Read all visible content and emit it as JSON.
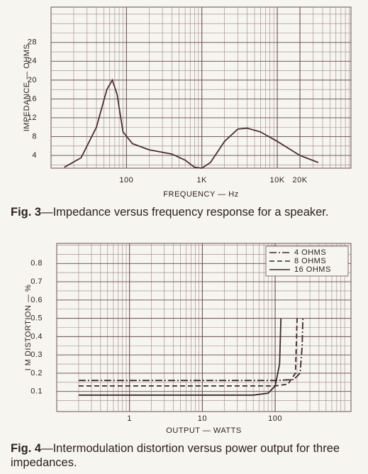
{
  "chart_data": [
    {
      "type": "line",
      "xlabel": "FREQUENCY — Hz",
      "ylabel": "IMPEDANCE — OHMS",
      "log_x": true,
      "grid": true,
      "color": "#4a3030",
      "x": [
        15,
        25,
        40,
        55,
        65,
        75,
        90,
        120,
        200,
        400,
        600,
        800,
        1000,
        1300,
        2000,
        3000,
        4000,
        6000,
        10000,
        20000,
        35000
      ],
      "values": [
        1.5,
        3.5,
        10,
        18,
        20,
        17,
        9,
        6.5,
        5.2,
        4.3,
        3,
        1.5,
        1.3,
        2.5,
        7,
        9.6,
        9.8,
        9,
        7,
        4,
        2.5
      ],
      "xlim": [
        10,
        95000
      ],
      "ylim": [
        1.3,
        35.5
      ],
      "xticks": [
        100,
        {
          "value": 1000,
          "label": "1K"
        },
        {
          "value": 10000,
          "label": "10K"
        },
        {
          "value": 20000,
          "label": "20K"
        }
      ],
      "yticks": [
        4,
        8,
        12,
        16,
        20,
        24,
        28
      ]
    },
    {
      "type": "line",
      "xlabel": "OUTPUT — WATTS",
      "ylabel": "I M DISTORTION — %",
      "log_x": true,
      "grid": true,
      "legend": "top-right",
      "series": [
        {
          "name": "4 OHMS",
          "color": "#3a2a2a",
          "dash": "dashdot",
          "x": [
            0.2,
            100,
            180,
            220,
            235,
            240
          ],
          "values": [
            0.16,
            0.16,
            0.165,
            0.2,
            0.35,
            0.5
          ]
        },
        {
          "name": "8 OHMS",
          "color": "#3a2a2a",
          "dash": "dashed",
          "x": [
            0.2,
            100,
            150,
            190,
            200
          ],
          "values": [
            0.13,
            0.13,
            0.14,
            0.2,
            0.5
          ]
        },
        {
          "name": "16 OHMS",
          "color": "#3a2a2a",
          "dash": "solid",
          "x": [
            0.2,
            50,
            80,
            100,
            115,
            120
          ],
          "values": [
            0.08,
            0.08,
            0.09,
            0.13,
            0.25,
            0.5
          ]
        }
      ],
      "xlim": [
        0.1,
        1100
      ],
      "ylim": [
        -0.01,
        0.91
      ],
      "xticks": [
        1,
        10,
        100
      ],
      "yticks": [
        0.1,
        0.2,
        0.3,
        0.4,
        0.5,
        0.6,
        0.7,
        0.8
      ]
    }
  ],
  "captions": [
    {
      "label": "Fig. 3",
      "text": "—Impedance versus frequency response for a speaker."
    },
    {
      "label": "Fig. 4",
      "text": "—Intermodulation distortion versus power output for three impedances."
    }
  ]
}
